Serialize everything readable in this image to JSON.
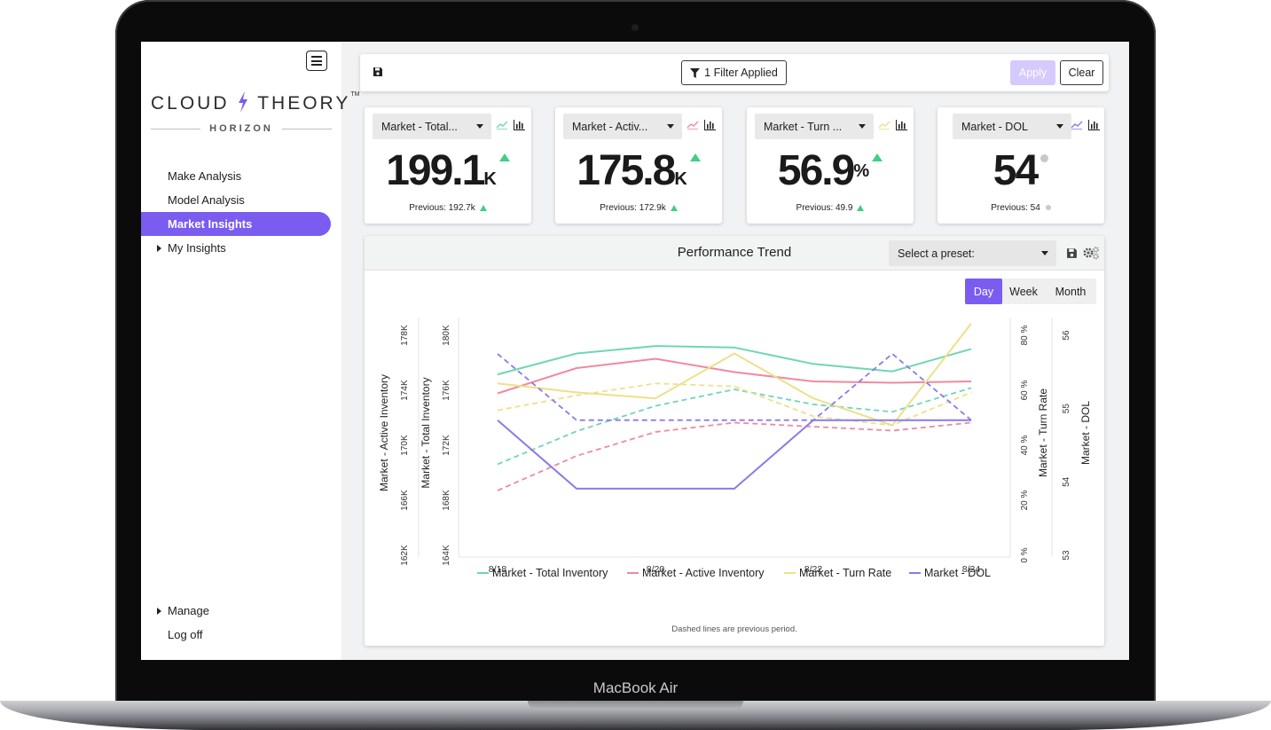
{
  "device": {
    "label": "MacBook Air"
  },
  "sidebar": {
    "logo_main_left": "CLOUD",
    "logo_main_right": "THEORY",
    "logo_tm": "TM",
    "logo_sub": "HORIZON",
    "items": [
      {
        "label": "Make Analysis"
      },
      {
        "label": "Model Analysis"
      },
      {
        "label": "Market Insights",
        "active": true
      },
      {
        "label": "My Insights",
        "expandable": true
      }
    ],
    "bottom_items": [
      {
        "label": "Manage",
        "expandable": true
      },
      {
        "label": "Log off"
      }
    ]
  },
  "toolbar": {
    "filter_label": "1 Filter Applied",
    "apply_label": "Apply",
    "clear_label": "Clear"
  },
  "cards": [
    {
      "select": "Market - Total...",
      "value": "199.1",
      "unit": "K",
      "trend": "up",
      "previous": "Previous: 192.7k",
      "line_color": "#6fd6b3"
    },
    {
      "select": "Market - Activ...",
      "value": "175.8",
      "unit": "K",
      "trend": "up",
      "previous": "Previous: 172.9k",
      "line_color": "#ef8aa0"
    },
    {
      "select": "Market - Turn ...",
      "value": "56.9",
      "unit": "%",
      "trend": "up",
      "previous": "Previous: 49.9",
      "line_color": "#ede08a"
    },
    {
      "select": "Market - DOL",
      "value": "54",
      "unit": "",
      "trend": "flat",
      "previous": "Previous: 54",
      "line_color": "#8c79e8"
    }
  ],
  "performance": {
    "title": "Performance Trend",
    "preset_placeholder": "Select a preset:",
    "periods": [
      "Day",
      "Week",
      "Month"
    ],
    "active_period": "Day",
    "footnote": "Dashed lines are previous period."
  },
  "chart_data": {
    "type": "line",
    "x": [
      "8/18",
      "8/19",
      "8/20",
      "8/21",
      "8/22",
      "8/23",
      "8/24"
    ],
    "x_tick_labels": [
      "8/18",
      "8/20",
      "8/22",
      "8/24"
    ],
    "axes": {
      "left_outer": {
        "label": "Market - Active Inventory",
        "ticks": [
          "162K",
          "166K",
          "170K",
          "174K",
          "178K"
        ],
        "range": [
          162,
          180
        ]
      },
      "left_inner": {
        "label": "Market - Total Inventory",
        "ticks": [
          "164K",
          "168K",
          "172K",
          "176K",
          "180K"
        ],
        "range": [
          164,
          180
        ]
      },
      "right_inner": {
        "label": "Market - Turn Rate",
        "ticks": [
          "0 %",
          "20 %",
          "40 %",
          "60 %",
          "80 %"
        ],
        "range": [
          0,
          80
        ]
      },
      "right_outer": {
        "label": "Market - DOL",
        "ticks": [
          "53",
          "54",
          "55",
          "56"
        ],
        "range": [
          53,
          56.5
        ]
      }
    },
    "grid": false,
    "legend": "bottom",
    "series": [
      {
        "name": "Market - Total Inventory",
        "axis": "left_inner",
        "color": "#6fd6b3",
        "values": [
          176.2,
          177.6,
          178.1,
          178.0,
          176.9,
          176.4,
          177.9
        ],
        "previous": [
          170.2,
          172.4,
          174.1,
          175.2,
          174.2,
          173.7,
          175.3
        ]
      },
      {
        "name": "Market - Active Inventory",
        "axis": "left_outer",
        "color": "#ef8aa0",
        "values": [
          174.3,
          176.2,
          176.9,
          175.9,
          175.2,
          175.1,
          175.2
        ],
        "previous": [
          167.0,
          169.6,
          171.4,
          172.1,
          171.8,
          171.5,
          172.1
        ]
      },
      {
        "name": "Market - Turn Rate",
        "axis": "right_inner",
        "color": "#ede08a",
        "values": [
          58,
          55,
          53,
          68,
          53,
          44,
          78
        ],
        "previous": [
          49,
          54,
          58,
          57,
          47,
          44,
          55
        ]
      },
      {
        "name": "Market - DOL",
        "axis": "right_outer",
        "color": "#8c79e8",
        "values": [
          55.0,
          54.0,
          54.0,
          54.0,
          55.0,
          55.0,
          55.0
        ],
        "previous": [
          55.97,
          55.0,
          55.0,
          55.0,
          55.0,
          55.97,
          55.0
        ]
      }
    ]
  }
}
